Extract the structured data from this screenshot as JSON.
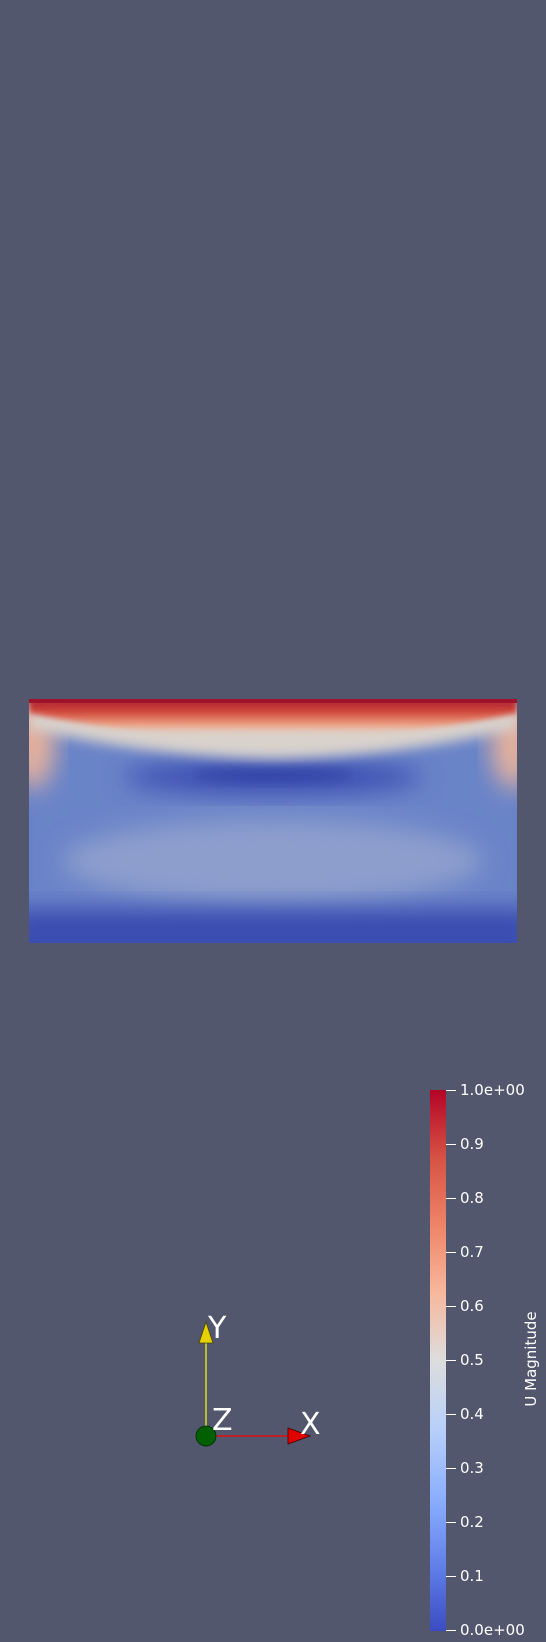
{
  "colorbar": {
    "title": "U Magnitude",
    "range": [
      0,
      1
    ],
    "colormap": "cool-to-warm",
    "ticks": [
      {
        "value": 1.0,
        "label": "1.0e+00"
      },
      {
        "value": 0.9,
        "label": "0.9"
      },
      {
        "value": 0.8,
        "label": "0.8"
      },
      {
        "value": 0.7,
        "label": "0.7"
      },
      {
        "value": 0.6,
        "label": "0.6"
      },
      {
        "value": 0.5,
        "label": "0.5"
      },
      {
        "value": 0.4,
        "label": "0.4"
      },
      {
        "value": 0.3,
        "label": "0.3"
      },
      {
        "value": 0.2,
        "label": "0.2"
      },
      {
        "value": 0.1,
        "label": "0.1"
      },
      {
        "value": 0.0,
        "label": "0.0e+00"
      }
    ]
  },
  "axes": {
    "x_label": "X",
    "y_label": "Y",
    "z_label": "Z",
    "x_color": "#ff0000",
    "y_color": "#ffff00",
    "z_color": "#006400"
  },
  "colors": {
    "background": "#52576e",
    "low": "#3b4cc0",
    "mid": "#dddddd",
    "high": "#b40426"
  }
}
